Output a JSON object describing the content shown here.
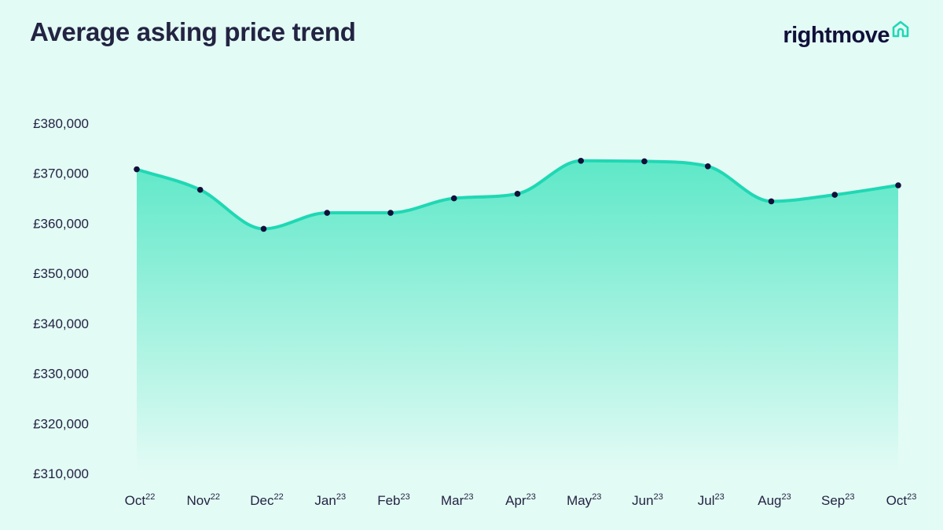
{
  "header": {
    "title": "Average asking price trend",
    "brand": "rightmove"
  },
  "colors": {
    "background": "#e3fbf5",
    "line": "#1fd8b4",
    "area_top": "#5ee8c8",
    "area_bottom": "#e3fbf5",
    "marker": "#10103a",
    "brand_icon": "#1fd8b4"
  },
  "icons": {
    "brand": "house-icon"
  },
  "chart_data": {
    "type": "area",
    "title": "Average asking price trend",
    "x": [
      {
        "month": "Oct",
        "year": "22"
      },
      {
        "month": "Nov",
        "year": "22"
      },
      {
        "month": "Dec",
        "year": "22"
      },
      {
        "month": "Jan",
        "year": "23"
      },
      {
        "month": "Feb",
        "year": "23"
      },
      {
        "month": "Mar",
        "year": "23"
      },
      {
        "month": "Apr",
        "year": "23"
      },
      {
        "month": "May",
        "year": "23"
      },
      {
        "month": "Jun",
        "year": "23"
      },
      {
        "month": "Jul",
        "year": "23"
      },
      {
        "month": "Aug",
        "year": "23"
      },
      {
        "month": "Sep",
        "year": "23"
      },
      {
        "month": "Oct",
        "year": "23"
      }
    ],
    "values": [
      370800,
      366700,
      358900,
      362100,
      362100,
      365000,
      365900,
      372500,
      372400,
      371400,
      364400,
      365700,
      367600
    ],
    "ylim": [
      310000,
      380000
    ],
    "yticks": [
      {
        "value": 380000,
        "label": "£380,000"
      },
      {
        "value": 370000,
        "label": "£370,000"
      },
      {
        "value": 360000,
        "label": "£360,000"
      },
      {
        "value": 350000,
        "label": "£350,000"
      },
      {
        "value": 340000,
        "label": "£340,000"
      },
      {
        "value": 330000,
        "label": "£330,000"
      },
      {
        "value": 320000,
        "label": "£320,000"
      },
      {
        "value": 310000,
        "label": "£310,000"
      }
    ],
    "grid": false,
    "legend": "none"
  }
}
